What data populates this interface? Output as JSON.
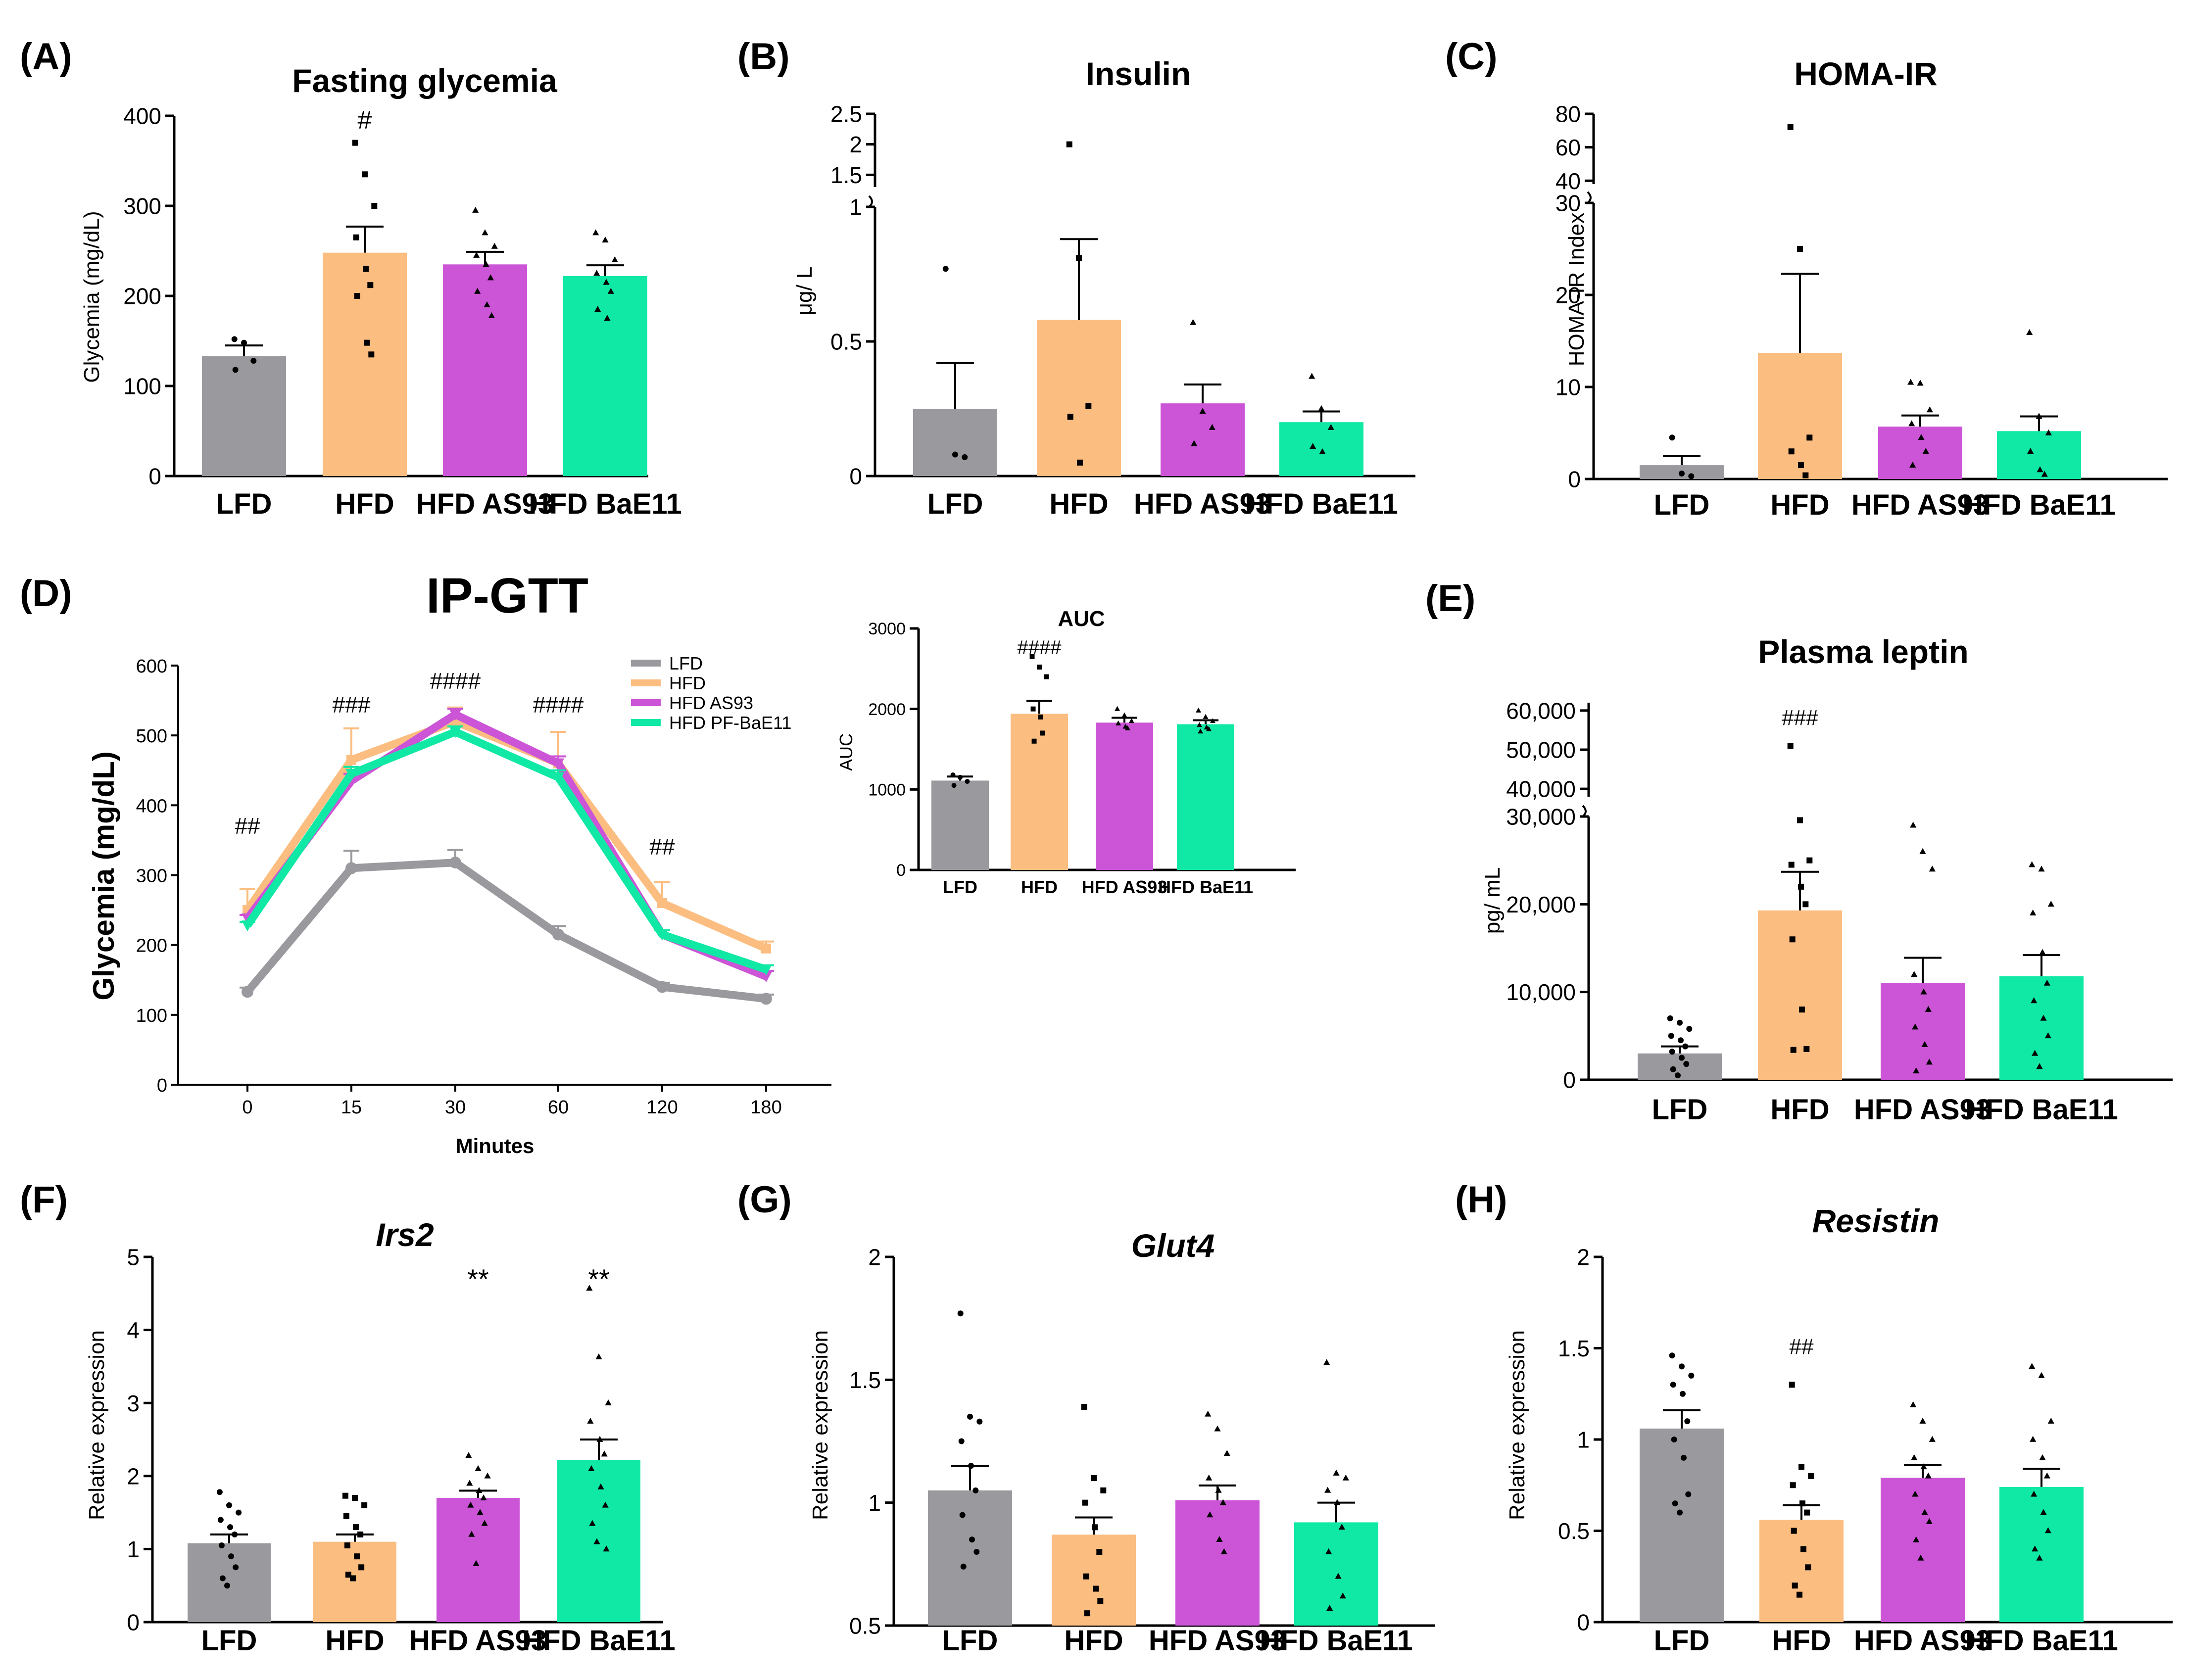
{
  "colors": {
    "LFD": "#9a9a9e",
    "HFD": "#fbbd80",
    "HFD AS93": "#cb55d6",
    "HFD BaE11": "#10e8a5"
  },
  "chart_data": [
    {
      "id": "A",
      "type": "bar",
      "panel_label": "(A)",
      "title": "Fasting glycemia",
      "italic": false,
      "categories": [
        "LFD",
        "HFD",
        "HFD AS93",
        "HFD BaE11"
      ],
      "values": [
        133,
        248,
        235,
        222
      ],
      "errors": [
        12,
        29,
        14,
        12
      ],
      "annotations": [
        "",
        "#",
        "",
        ""
      ],
      "ylabel": "Glycemia (mg/dL)",
      "ylim": [
        0,
        400
      ],
      "yticks": [
        0,
        100,
        200,
        300,
        400
      ],
      "points": [
        [
          152,
          148,
          128,
          118
        ],
        [
          370,
          335,
          300,
          265,
          230,
          212,
          200,
          148,
          135
        ],
        [
          295,
          270,
          255,
          245,
          235,
          220,
          205,
          190,
          178
        ],
        [
          270,
          262,
          240,
          225,
          215,
          205,
          185,
          175
        ]
      ]
    },
    {
      "id": "B",
      "type": "bar",
      "panel_label": "(B)",
      "title": "Insulin",
      "italic": false,
      "categories": [
        "LFD",
        "HFD",
        "HFD AS93",
        "HFD BaE11"
      ],
      "values": [
        0.25,
        0.58,
        0.27,
        0.2
      ],
      "errors": [
        0.17,
        0.3,
        0.07,
        0.04
      ],
      "annotations": [
        "",
        "",
        "",
        ""
      ],
      "ylabel": "μg/ L",
      "ylim": [
        0,
        1
      ],
      "yticks": [
        0,
        0.5,
        1
      ],
      "break": {
        "upper_range": [
          1.3,
          2.5
        ],
        "upper_ticks": [
          1.5,
          2,
          2.5
        ]
      },
      "points": [
        [
          0.77,
          0.08,
          0.07
        ],
        [
          2.0,
          0.81,
          0.26,
          0.22,
          0.05
        ],
        [
          0.57,
          0.24,
          0.18,
          0.12
        ],
        [
          0.37,
          0.25,
          0.18,
          0.11,
          0.09
        ]
      ]
    },
    {
      "id": "C",
      "type": "bar",
      "panel_label": "(C)",
      "title": "HOMA-IR",
      "italic": false,
      "categories": [
        "LFD",
        "HFD",
        "HFD AS93",
        "HFD BaE11"
      ],
      "values": [
        1.5,
        13.7,
        5.7,
        5.2
      ],
      "errors": [
        1.0,
        8.6,
        1.2,
        1.6
      ],
      "annotations": [
        "",
        "",
        "",
        ""
      ],
      "ylabel": "HOMA-IR Index",
      "ylim": [
        0,
        30
      ],
      "yticks": [
        0,
        10,
        20,
        30
      ],
      "break": {
        "upper_range": [
          38,
          80
        ],
        "upper_ticks": [
          40,
          60,
          80
        ]
      },
      "points": [
        [
          4.5,
          0.6,
          0.3
        ],
        [
          72,
          25,
          4.5,
          3.0,
          1.5,
          0.4
        ],
        [
          10.5,
          10.4,
          7.5,
          6.0,
          4.5,
          3.0,
          1.5
        ],
        [
          15.9,
          6.8,
          5.0,
          3.0,
          1.0,
          0.5
        ]
      ]
    },
    {
      "id": "D",
      "type": "line",
      "panel_label": "(D)",
      "title": "IP-GTT",
      "xlabel": "Minutes",
      "ylabel": "Glycemia (mg/dL)",
      "x": [
        "0",
        "15",
        "30",
        "60",
        "120",
        "180"
      ],
      "ylim": [
        0,
        600
      ],
      "yticks": [
        0,
        100,
        200,
        300,
        400,
        500,
        600
      ],
      "series": [
        {
          "name": "LFD",
          "values": [
            133,
            310,
            318,
            215,
            140,
            123
          ],
          "errors": [
            6,
            25,
            18,
            12,
            6,
            6
          ]
        },
        {
          "name": "HFD",
          "values": [
            250,
            465,
            520,
            460,
            260,
            195
          ],
          "errors": [
            30,
            45,
            20,
            45,
            30,
            10
          ]
        },
        {
          "name": "HFD AS93",
          "values": [
            238,
            435,
            530,
            460,
            215,
            155
          ],
          "errors": [
            5,
            10,
            8,
            10,
            6,
            8
          ]
        },
        {
          "name": "HFD PF-BaE11",
          "values": [
            228,
            445,
            505,
            440,
            215,
            165
          ],
          "errors": [
            5,
            10,
            8,
            10,
            6,
            6
          ]
        }
      ],
      "annotations": [
        "##",
        "###",
        "####",
        "####",
        "##",
        ""
      ]
    },
    {
      "id": "D_AUC",
      "type": "bar",
      "panel_label": "",
      "title": "AUC",
      "italic": false,
      "categories": [
        "LFD",
        "HFD",
        "HFD AS93",
        "HFD BaE11"
      ],
      "values": [
        1110,
        1940,
        1830,
        1810
      ],
      "errors": [
        50,
        160,
        60,
        50
      ],
      "annotations": [
        "",
        "####",
        "",
        ""
      ],
      "ylabel": "AUC",
      "ylim": [
        0,
        3000
      ],
      "yticks": [
        0,
        1000,
        2000,
        3000
      ],
      "points": [
        [
          1180,
          1150,
          1100,
          1050
        ],
        [
          2650,
          2520,
          2400,
          2000,
          1900,
          1700,
          1600
        ],
        [
          2000,
          1920,
          1850,
          1820,
          1780,
          1760
        ],
        [
          1980,
          1900,
          1850,
          1800,
          1770,
          1750,
          1720
        ]
      ]
    },
    {
      "id": "E",
      "type": "bar",
      "panel_label": "(E)",
      "title": "Plasma leptin",
      "italic": false,
      "categories": [
        "LFD",
        "HFD",
        "HFD AS93",
        "HFD BaE11"
      ],
      "values": [
        3000,
        19300,
        11000,
        11800
      ],
      "errors": [
        800,
        4400,
        2900,
        2400
      ],
      "annotations": [
        "",
        "###",
        "",
        ""
      ],
      "ylabel": "pg/ mL",
      "ylim": [
        0,
        30000
      ],
      "yticks": [
        0,
        10000,
        20000,
        30000
      ],
      "yticklabels": [
        "0",
        "10,000",
        "20,000",
        "30,000"
      ],
      "break": {
        "upper_range": [
          38000,
          62000
        ],
        "upper_ticks": [
          40000,
          50000,
          60000
        ],
        "upper_ticklabels": [
          "40,000",
          "50,000",
          "60,000"
        ]
      },
      "points": [
        [
          7000,
          6500,
          5800,
          5000,
          4500,
          3800,
          3200,
          2500,
          1800,
          1200,
          500
        ],
        [
          51000,
          32000,
          25000,
          24500,
          22000,
          20000,
          16000,
          8000,
          3500,
          3400
        ],
        [
          29000,
          26000,
          24000,
          12000,
          10000,
          8000,
          6000,
          4000,
          2000,
          1000
        ],
        [
          24500,
          24000,
          20000,
          19000,
          14500,
          11000,
          9000,
          7000,
          5000,
          3000,
          1500
        ]
      ]
    },
    {
      "id": "F",
      "type": "bar",
      "panel_label": "(F)",
      "title": "Irs2",
      "italic": true,
      "categories": [
        "LFD",
        "HFD",
        "HFD AS93",
        "HFD BaE11"
      ],
      "values": [
        1.08,
        1.1,
        1.7,
        2.22
      ],
      "errors": [
        0.12,
        0.1,
        0.1,
        0.28
      ],
      "annotations": [
        "",
        "",
        "**",
        "**"
      ],
      "ylabel": "Relative expression",
      "ylim": [
        0,
        5
      ],
      "yticks": [
        0,
        1,
        2,
        3,
        4,
        5
      ],
      "points": [
        [
          1.78,
          1.6,
          1.5,
          1.4,
          1.3,
          1.2,
          1.05,
          0.9,
          0.75,
          0.6,
          0.5
        ],
        [
          1.73,
          1.7,
          1.6,
          1.45,
          1.3,
          1.2,
          1.05,
          0.9,
          0.75,
          0.65,
          0.6
        ],
        [
          2.28,
          2.1,
          2.0,
          1.9,
          1.8,
          1.7,
          1.6,
          1.5,
          1.35,
          1.2,
          0.8
        ],
        [
          4.57,
          3.63,
          3.0,
          2.75,
          2.5,
          2.3,
          2.1,
          1.85,
          1.6,
          1.35,
          1.1,
          1.0
        ]
      ]
    },
    {
      "id": "G",
      "type": "bar",
      "panel_label": "(G)",
      "title": "Glut4",
      "italic": true,
      "categories": [
        "LFD",
        "HFD",
        "HFD AS93",
        "HFD BaE11"
      ],
      "values": [
        1.05,
        0.87,
        1.01,
        0.92
      ],
      "errors": [
        0.1,
        0.07,
        0.06,
        0.08
      ],
      "annotations": [
        "",
        "",
        "",
        ""
      ],
      "ylabel": "Relative expression",
      "ylim": [
        0.5,
        2
      ],
      "yticks": [
        0.5,
        1,
        1.5,
        2
      ],
      "points": [
        [
          1.77,
          1.35,
          1.33,
          1.25,
          1.15,
          1.05,
          0.95,
          0.85,
          0.8,
          0.74
        ],
        [
          1.39,
          1.1,
          1.05,
          1.0,
          0.9,
          0.8,
          0.7,
          0.65,
          0.6,
          0.55
        ],
        [
          1.36,
          1.3,
          1.2,
          1.1,
          1.05,
          1.0,
          0.95,
          0.85,
          0.8
        ],
        [
          1.57,
          1.12,
          1.1,
          1.05,
          1.0,
          0.9,
          0.8,
          0.7,
          0.62,
          0.57
        ]
      ]
    },
    {
      "id": "H",
      "type": "bar",
      "panel_label": "(H)",
      "title": "Resistin",
      "italic": true,
      "categories": [
        "LFD",
        "HFD",
        "HFD AS93",
        "HFD BaE11"
      ],
      "values": [
        1.06,
        0.56,
        0.79,
        0.74
      ],
      "errors": [
        0.1,
        0.08,
        0.07,
        0.1
      ],
      "annotations": [
        "",
        "##",
        "",
        ""
      ],
      "ylabel": "Relative expression",
      "ylim": [
        0,
        2
      ],
      "yticks": [
        0,
        0.5,
        1,
        1.5,
        2
      ],
      "yticklabels": [
        "0",
        "0.5",
        "1",
        "1.5",
        "2"
      ],
      "points": [
        [
          1.46,
          1.4,
          1.35,
          1.3,
          1.25,
          1.1,
          1.0,
          0.9,
          0.7,
          0.65,
          0.6
        ],
        [
          1.3,
          0.85,
          0.8,
          0.75,
          0.65,
          0.6,
          0.5,
          0.4,
          0.3,
          0.2,
          0.15
        ],
        [
          1.19,
          1.1,
          1.0,
          0.9,
          0.85,
          0.8,
          0.7,
          0.6,
          0.55,
          0.45,
          0.35
        ],
        [
          1.4,
          1.35,
          1.1,
          1.0,
          0.9,
          0.8,
          0.7,
          0.6,
          0.5,
          0.4,
          0.35
        ]
      ]
    }
  ]
}
